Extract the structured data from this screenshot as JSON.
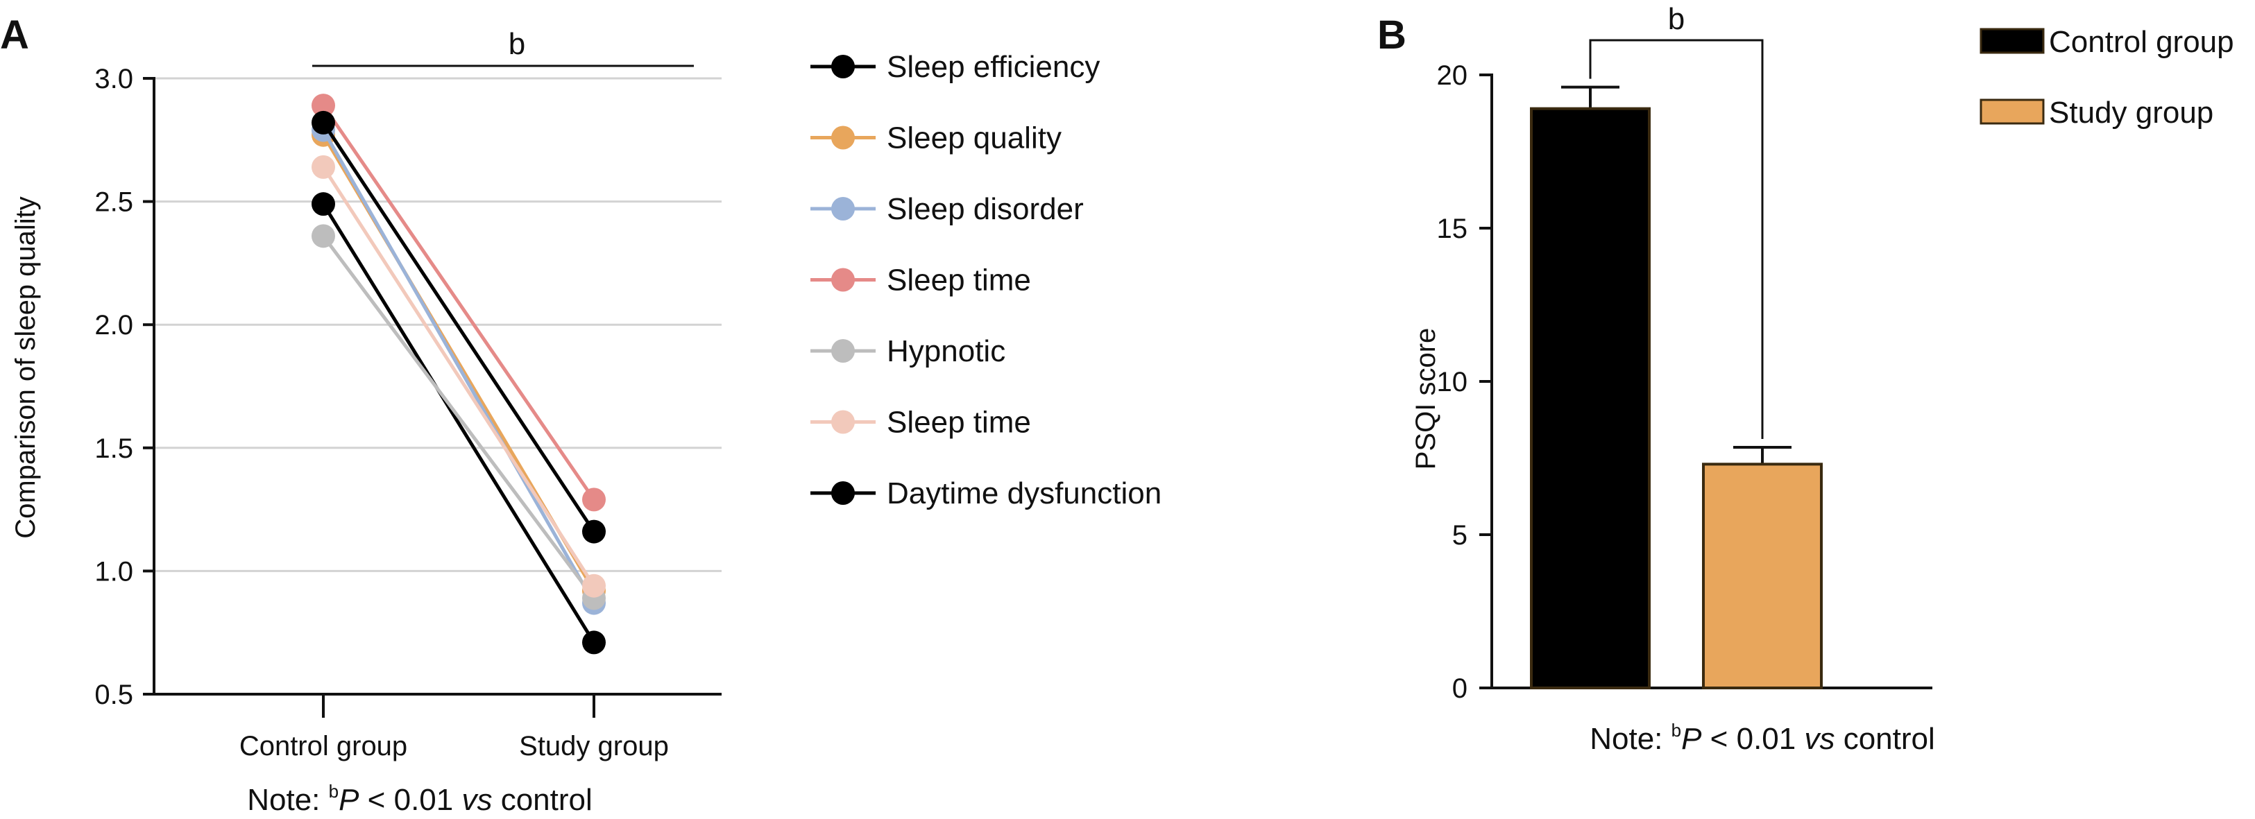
{
  "chart_data": [
    {
      "panel": "A",
      "type": "line",
      "categories": [
        "Control group",
        "Study group"
      ],
      "ylabel": "Comparison of sleep quality",
      "ylim": [
        0.5,
        3.0
      ],
      "yticks": [
        "0.5",
        "1.0",
        "1.5",
        "2.0",
        "2.5",
        "3.0"
      ],
      "ytick_values": [
        0.5,
        1.0,
        1.5,
        2.0,
        2.5,
        3.0
      ],
      "grid": true,
      "legend_position": "right",
      "significance_label": "b",
      "note": {
        "prefix": "Note: ",
        "sup": "b",
        "p": "P",
        "mid": " < 0.01 ",
        "vs": "vs",
        "suffix": " control"
      },
      "series": [
        {
          "name": "Sleep efficiency",
          "color": "#000000",
          "values": [
            2.49,
            0.71
          ]
        },
        {
          "name": "Sleep quality",
          "color": "#e8a65c",
          "values": [
            2.77,
            0.92
          ]
        },
        {
          "name": "Sleep disorder",
          "color": "#9bb3d8",
          "values": [
            2.79,
            0.87
          ]
        },
        {
          "name": "Sleep time",
          "color": "#e58a88",
          "values": [
            2.89,
            1.29
          ]
        },
        {
          "name": "Hypnotic",
          "color": "#bdbdbd",
          "values": [
            2.36,
            0.89
          ]
        },
        {
          "name": "Sleep time",
          "color": "#f2c9bb",
          "values": [
            2.64,
            0.94
          ]
        },
        {
          "name": "Daytime dysfunction",
          "color": "#000000",
          "values": [
            2.82,
            1.16
          ]
        }
      ]
    },
    {
      "panel": "B",
      "type": "bar",
      "categories": [
        "Control group",
        "Study group"
      ],
      "ylabel": "PSQI score",
      "ylim": [
        0,
        20
      ],
      "yticks": [
        "0",
        "5",
        "10",
        "15",
        "20"
      ],
      "ytick_values": [
        0,
        5,
        10,
        15,
        20
      ],
      "grid": false,
      "legend_position": "top-right",
      "significance_label": "b",
      "note": {
        "prefix": "Note: ",
        "sup": "b",
        "p": "P",
        "mid": " < 0.01 ",
        "vs": "vs",
        "suffix": " control"
      },
      "series": [
        {
          "name": "Control group",
          "color": "#000000",
          "value": 18.9,
          "error": 0.7
        },
        {
          "name": "Study group",
          "color": "#e8a65c",
          "value": 7.3,
          "error": 0.55
        }
      ]
    }
  ]
}
